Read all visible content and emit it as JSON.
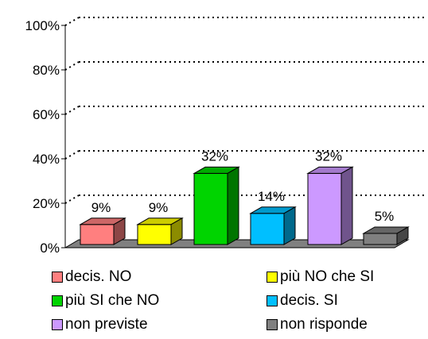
{
  "chart_data": {
    "type": "bar",
    "categories": [
      "decis. NO",
      "più NO che SI",
      "più SI che NO",
      "decis. SI",
      "non previste",
      "non risponde"
    ],
    "values": [
      9,
      9,
      32,
      14,
      32,
      5
    ],
    "data_labels": [
      "9%",
      "9%",
      "32%",
      "14%",
      "32%",
      "5%"
    ],
    "colors": [
      "#ff7f7f",
      "#ffff00",
      "#00d400",
      "#00bfff",
      "#cc99ff",
      "#808080"
    ],
    "ylim": [
      0,
      100
    ],
    "y_ticks": [
      "0%",
      "20%",
      "40%",
      "60%",
      "80%",
      "100%"
    ],
    "y_tick_values": [
      0,
      20,
      40,
      60,
      80,
      100
    ],
    "gridlines": "dotted",
    "legend_position": "bottom",
    "xlabel": "",
    "ylabel": "",
    "title": ""
  }
}
